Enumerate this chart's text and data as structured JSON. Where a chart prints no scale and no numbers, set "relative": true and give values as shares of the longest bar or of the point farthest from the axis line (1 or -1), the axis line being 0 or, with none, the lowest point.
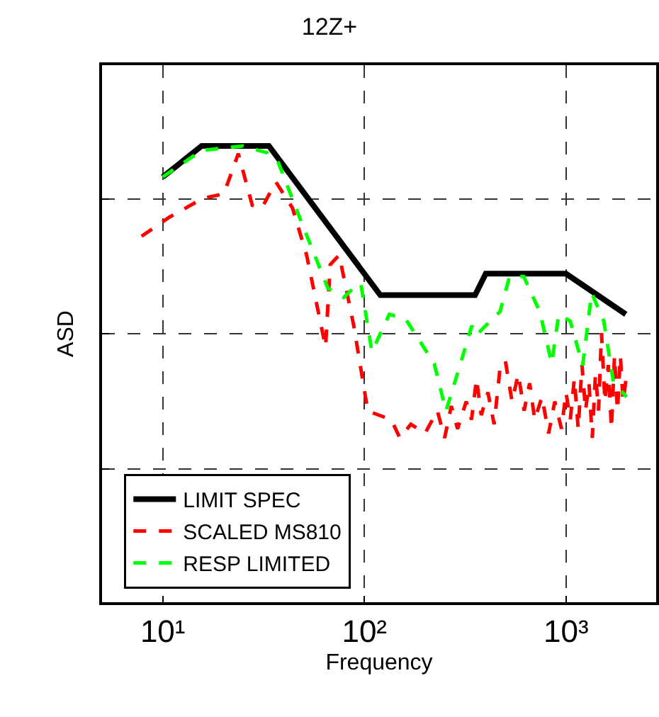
{
  "chart_data": {
    "type": "line",
    "title": "12Z+",
    "xlabel": "Frequency",
    "ylabel": "ASD",
    "relative": true,
    "log": "x",
    "grid": true,
    "legend": "bottom left",
    "marker": "none",
    "xlim": [
      5,
      2800
    ],
    "xticks": [
      {
        "value": 10,
        "label": "10¹"
      },
      {
        "value": 100,
        "label": "10²"
      },
      {
        "value": 1000,
        "label": "10³"
      }
    ],
    "series": [
      {
        "name": "LIMIT SPEC",
        "color": "#000000",
        "line_style": "solid",
        "x": [
          10,
          15.6,
          33.6,
          120,
          354,
          400,
          1000,
          1980
        ],
        "values": [
          0.932,
          1.0,
          1.0,
          0.673,
          0.673,
          0.72,
          0.72,
          0.631
        ]
      },
      {
        "name": "SCALED MS810",
        "color": "#ff0000",
        "line_style": "dashed",
        "x": [
          7.85,
          10.8,
          15.8,
          20.1,
          23.7,
          27.8,
          31,
          36.4,
          44,
          51.7,
          64.2,
          67.7,
          75,
          88.6,
          104,
          136,
          150,
          170,
          200,
          230,
          250,
          270,
          290,
          320,
          340,
          360,
          380,
          410,
          440,
          470,
          500,
          540,
          580,
          620,
          660,
          700,
          760,
          820,
          880,
          950,
          1000,
          1050,
          1100,
          1150,
          1200,
          1250,
          1300,
          1350,
          1400,
          1450,
          1500,
          1560,
          1620,
          1680,
          1740,
          1800,
          1860,
          1920,
          2000
        ],
        "values": [
          0.802,
          0.844,
          0.885,
          0.895,
          0.983,
          0.87,
          0.864,
          0.921,
          0.864,
          0.761,
          0.559,
          0.74,
          0.761,
          0.606,
          0.419,
          0.4,
          0.36,
          0.39,
          0.37,
          0.42,
          0.36,
          0.43,
          0.38,
          0.44,
          0.4,
          0.49,
          0.41,
          0.46,
          0.39,
          0.51,
          0.53,
          0.44,
          0.5,
          0.42,
          0.48,
          0.4,
          0.45,
          0.37,
          0.44,
          0.38,
          0.46,
          0.4,
          0.49,
          0.38,
          0.52,
          0.42,
          0.48,
          0.36,
          0.5,
          0.42,
          0.59,
          0.44,
          0.52,
          0.38,
          0.54,
          0.42,
          0.54,
          0.44,
          0.5
        ]
      },
      {
        "name": "RESP LIMITED",
        "color": "#00ff00",
        "line_style": "dashed",
        "x": [
          10,
          15.6,
          25,
          33,
          37.5,
          48.7,
          66,
          79,
          88.6,
          96,
          109,
          133,
          160,
          222,
          254,
          290,
          341,
          358,
          471,
          525,
          617,
          741,
          850,
          920,
          1050,
          1210,
          1340,
          1540,
          1720,
          2000
        ],
        "values": [
          0.932,
          0.99,
          1.0,
          0.985,
          0.963,
          0.833,
          0.688,
          0.668,
          0.689,
          0.699,
          0.549,
          0.631,
          0.621,
          0.523,
          0.419,
          0.502,
          0.606,
          0.585,
          0.637,
          0.714,
          0.714,
          0.637,
          0.523,
          0.631,
          0.616,
          0.519,
          0.678,
          0.616,
          0.481,
          0.45
        ]
      }
    ]
  }
}
